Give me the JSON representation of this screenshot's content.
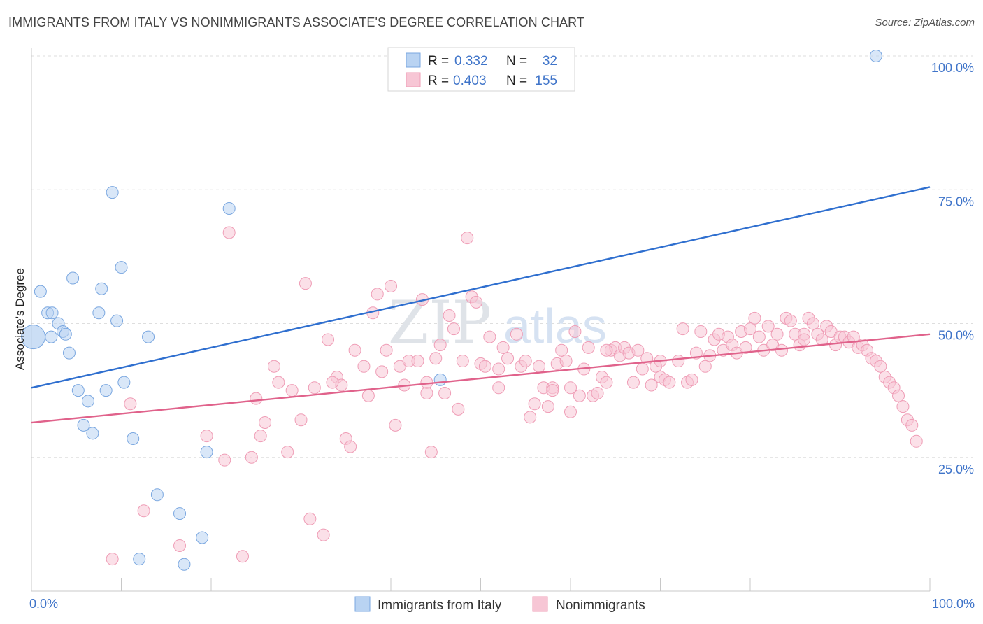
{
  "title": "IMMIGRANTS FROM ITALY VS NONIMMIGRANTS ASSOCIATE'S DEGREE CORRELATION CHART",
  "source": "Source: ZipAtlas.com",
  "watermark": {
    "part1": "ZIP",
    "part2": "atlas"
  },
  "chart_data": {
    "type": "scatter",
    "xlabel": "",
    "ylabel": "Associate's Degree",
    "xlim": [
      0,
      100
    ],
    "ylim": [
      0,
      100
    ],
    "x_tick_labels": {
      "left": "0.0%",
      "right": "100.0%"
    },
    "y_tick_labels": [
      {
        "value": 25,
        "label": "25.0%"
      },
      {
        "value": 50,
        "label": "50.0%"
      },
      {
        "value": 75,
        "label": "75.0%"
      },
      {
        "value": 100,
        "label": "100.0%"
      }
    ],
    "legend": {
      "placement": "top-center",
      "rows": [
        {
          "r_label": "R =",
          "r_value": "0.332",
          "n_label": "N =",
          "n_value": "32"
        },
        {
          "r_label": "R =",
          "r_value": "0.403",
          "n_label": "N =",
          "n_value": "155"
        }
      ]
    },
    "series": [
      {
        "name": "Immigrants from Italy",
        "color": "#7aa7e0",
        "fill": "#b9d3f2",
        "line_color": "#2f6fcf",
        "trend": {
          "x0": 0,
          "y0": 38.0,
          "x1": 100,
          "y1": 75.5
        },
        "points": [
          [
            1.0,
            56.0
          ],
          [
            1.8,
            52.0
          ],
          [
            2.3,
            52.0
          ],
          [
            2.2,
            47.5
          ],
          [
            3.0,
            50.0
          ],
          [
            3.5,
            48.5
          ],
          [
            3.8,
            48.0
          ],
          [
            4.2,
            44.5
          ],
          [
            4.6,
            58.5
          ],
          [
            5.2,
            37.5
          ],
          [
            5.8,
            31.0
          ],
          [
            6.3,
            35.5
          ],
          [
            6.8,
            29.5
          ],
          [
            7.5,
            52.0
          ],
          [
            7.8,
            56.5
          ],
          [
            8.3,
            37.5
          ],
          [
            9.0,
            74.5
          ],
          [
            9.5,
            50.5
          ],
          [
            10.0,
            60.5
          ],
          [
            10.3,
            39.0
          ],
          [
            11.3,
            28.5
          ],
          [
            12.0,
            6.0
          ],
          [
            13.0,
            47.5
          ],
          [
            14.0,
            18.0
          ],
          [
            16.5,
            14.5
          ],
          [
            17.0,
            5.0
          ],
          [
            19.0,
            10.0
          ],
          [
            19.5,
            26.0
          ],
          [
            22.0,
            71.5
          ],
          [
            45.5,
            39.5
          ],
          [
            94.0,
            100.0
          ],
          [
            0.2,
            47.5
          ]
        ],
        "big_point_index": 31
      },
      {
        "name": "Nonimmigrants",
        "color": "#ef9db6",
        "fill": "#f7c6d5",
        "line_color": "#e0628b",
        "trend": {
          "x0": 0,
          "y0": 31.5,
          "x1": 100,
          "y1": 48.0
        },
        "points": [
          [
            9.0,
            6.0
          ],
          [
            11.0,
            35.0
          ],
          [
            12.5,
            15.0
          ],
          [
            16.5,
            8.5
          ],
          [
            19.5,
            29.0
          ],
          [
            21.5,
            24.5
          ],
          [
            22.0,
            67.0
          ],
          [
            23.5,
            6.5
          ],
          [
            24.5,
            25.0
          ],
          [
            25.0,
            36.0
          ],
          [
            25.5,
            29.0
          ],
          [
            26.0,
            31.5
          ],
          [
            27.0,
            42.0
          ],
          [
            27.5,
            39.0
          ],
          [
            28.5,
            26.0
          ],
          [
            29.0,
            37.5
          ],
          [
            30.0,
            32.0
          ],
          [
            30.5,
            57.5
          ],
          [
            31.0,
            13.5
          ],
          [
            31.5,
            38.0
          ],
          [
            32.5,
            10.5
          ],
          [
            33.0,
            47.0
          ],
          [
            34.0,
            40.0
          ],
          [
            34.5,
            38.5
          ],
          [
            35.0,
            28.5
          ],
          [
            35.5,
            27.0
          ],
          [
            36.0,
            45.0
          ],
          [
            37.0,
            42.0
          ],
          [
            37.5,
            36.5
          ],
          [
            38.0,
            52.0
          ],
          [
            38.5,
            55.5
          ],
          [
            39.0,
            41.0
          ],
          [
            39.5,
            45.0
          ],
          [
            40.0,
            57.0
          ],
          [
            40.5,
            31.0
          ],
          [
            41.0,
            42.0
          ],
          [
            41.5,
            38.5
          ],
          [
            42.0,
            43.0
          ],
          [
            43.0,
            43.0
          ],
          [
            43.5,
            54.5
          ],
          [
            44.0,
            37.0
          ],
          [
            44.5,
            26.0
          ],
          [
            45.0,
            43.5
          ],
          [
            45.5,
            46.0
          ],
          [
            46.0,
            37.0
          ],
          [
            46.5,
            51.5
          ],
          [
            47.0,
            49.0
          ],
          [
            47.5,
            34.0
          ],
          [
            48.0,
            43.0
          ],
          [
            48.5,
            66.0
          ],
          [
            49.0,
            55.0
          ],
          [
            49.5,
            54.0
          ],
          [
            50.0,
            42.5
          ],
          [
            50.5,
            42.0
          ],
          [
            51.0,
            47.5
          ],
          [
            52.0,
            38.0
          ],
          [
            52.5,
            45.5
          ],
          [
            53.0,
            43.5
          ],
          [
            54.0,
            48.0
          ],
          [
            54.5,
            42.0
          ],
          [
            55.0,
            43.0
          ],
          [
            55.5,
            32.5
          ],
          [
            56.0,
            35.0
          ],
          [
            56.5,
            42.0
          ],
          [
            57.0,
            38.0
          ],
          [
            57.5,
            34.5
          ],
          [
            58.0,
            38.0
          ],
          [
            58.5,
            42.5
          ],
          [
            59.0,
            45.0
          ],
          [
            59.5,
            43.0
          ],
          [
            60.0,
            33.5
          ],
          [
            60.5,
            48.5
          ],
          [
            61.0,
            36.5
          ],
          [
            61.5,
            41.5
          ],
          [
            62.0,
            45.5
          ],
          [
            62.5,
            36.5
          ],
          [
            63.0,
            37.0
          ],
          [
            63.5,
            40.0
          ],
          [
            64.0,
            39.0
          ],
          [
            64.5,
            45.0
          ],
          [
            65.0,
            45.5
          ],
          [
            65.5,
            44.0
          ],
          [
            66.0,
            45.5
          ],
          [
            66.5,
            44.5
          ],
          [
            67.0,
            39.0
          ],
          [
            67.5,
            45.0
          ],
          [
            68.0,
            41.5
          ],
          [
            68.5,
            43.5
          ],
          [
            69.0,
            38.5
          ],
          [
            69.5,
            42.0
          ],
          [
            70.0,
            40.0
          ],
          [
            70.5,
            39.5
          ],
          [
            71.0,
            39.0
          ],
          [
            72.0,
            43.0
          ],
          [
            72.5,
            49.0
          ],
          [
            73.0,
            39.0
          ],
          [
            73.5,
            39.5
          ],
          [
            74.0,
            44.5
          ],
          [
            74.5,
            48.5
          ],
          [
            75.0,
            42.0
          ],
          [
            75.5,
            44.0
          ],
          [
            76.0,
            47.0
          ],
          [
            76.5,
            48.0
          ],
          [
            77.0,
            45.0
          ],
          [
            77.5,
            47.5
          ],
          [
            78.0,
            46.0
          ],
          [
            78.5,
            44.5
          ],
          [
            79.0,
            48.5
          ],
          [
            79.5,
            45.5
          ],
          [
            80.0,
            49.0
          ],
          [
            80.5,
            51.0
          ],
          [
            81.0,
            47.5
          ],
          [
            81.5,
            45.0
          ],
          [
            82.0,
            49.5
          ],
          [
            82.5,
            46.0
          ],
          [
            83.0,
            48.0
          ],
          [
            83.5,
            45.0
          ],
          [
            84.0,
            51.0
          ],
          [
            84.5,
            50.5
          ],
          [
            85.0,
            48.0
          ],
          [
            85.5,
            46.0
          ],
          [
            86.0,
            48.0
          ],
          [
            86.5,
            51.0
          ],
          [
            87.0,
            50.0
          ],
          [
            87.5,
            48.0
          ],
          [
            88.0,
            47.0
          ],
          [
            88.5,
            49.5
          ],
          [
            89.0,
            48.5
          ],
          [
            89.5,
            46.0
          ],
          [
            90.0,
            47.5
          ],
          [
            90.5,
            47.5
          ],
          [
            91.0,
            46.5
          ],
          [
            91.5,
            47.5
          ],
          [
            92.0,
            45.5
          ],
          [
            92.5,
            46.0
          ],
          [
            93.0,
            45.0
          ],
          [
            93.5,
            43.5
          ],
          [
            94.0,
            43.0
          ],
          [
            94.5,
            42.0
          ],
          [
            95.0,
            40.0
          ],
          [
            95.5,
            39.0
          ],
          [
            96.0,
            38.0
          ],
          [
            96.5,
            36.5
          ],
          [
            97.0,
            34.5
          ],
          [
            97.5,
            32.0
          ],
          [
            98.0,
            31.0
          ],
          [
            98.5,
            28.0
          ],
          [
            86.0,
            47.0
          ],
          [
            60.0,
            38.0
          ],
          [
            33.5,
            39.0
          ],
          [
            44.0,
            39.0
          ],
          [
            52.0,
            41.5
          ],
          [
            58.0,
            37.5
          ],
          [
            64.0,
            45.0
          ],
          [
            70.0,
            43.0
          ]
        ]
      }
    ]
  }
}
